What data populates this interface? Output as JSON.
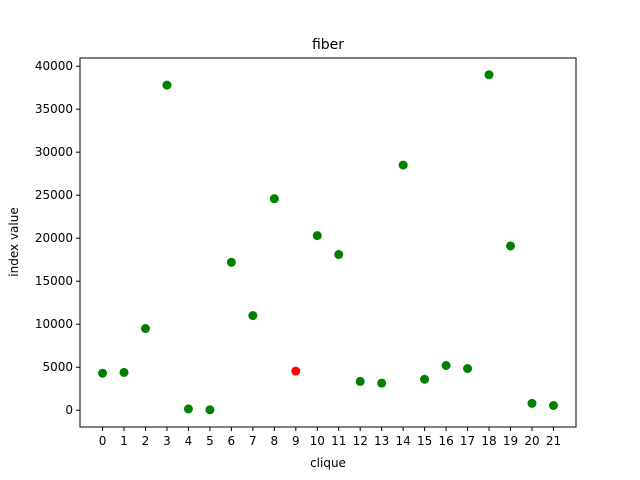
{
  "chart_data": {
    "type": "scatter",
    "title": "fiber",
    "xlabel": "clique",
    "ylabel": "index value",
    "x": [
      0,
      1,
      2,
      3,
      4,
      5,
      6,
      7,
      8,
      9,
      10,
      11,
      12,
      13,
      14,
      15,
      16,
      17,
      18,
      19,
      20,
      21
    ],
    "y": [
      4300,
      4400,
      9500,
      37800,
      150,
      50,
      17200,
      11000,
      24600,
      4550,
      20300,
      18100,
      3350,
      3150,
      28500,
      3600,
      5200,
      4850,
      39000,
      19100,
      800,
      550
    ],
    "point_colors": [
      "#008000",
      "#008000",
      "#008000",
      "#008000",
      "#008000",
      "#008000",
      "#008000",
      "#008000",
      "#008000",
      "#ff0000",
      "#008000",
      "#008000",
      "#008000",
      "#008000",
      "#008000",
      "#008000",
      "#008000",
      "#008000",
      "#008000",
      "#008000",
      "#008000",
      "#008000"
    ],
    "x_ticks": [
      "0",
      "1",
      "2",
      "3",
      "4",
      "5",
      "6",
      "7",
      "8",
      "9",
      "10",
      "11",
      "12",
      "13",
      "14",
      "15",
      "16",
      "17",
      "18",
      "19",
      "20",
      "21"
    ],
    "y_ticks": [
      0,
      5000,
      10000,
      15000,
      20000,
      25000,
      30000,
      35000,
      40000
    ],
    "y_tick_labels": [
      "0",
      "5000",
      "10000",
      "15000",
      "20000",
      "25000",
      "30000",
      "35000",
      "40000"
    ],
    "xlim": [
      -1.05,
      22.05
    ],
    "ylim": [
      -1950,
      40950
    ],
    "grid": false,
    "legend": "none"
  }
}
